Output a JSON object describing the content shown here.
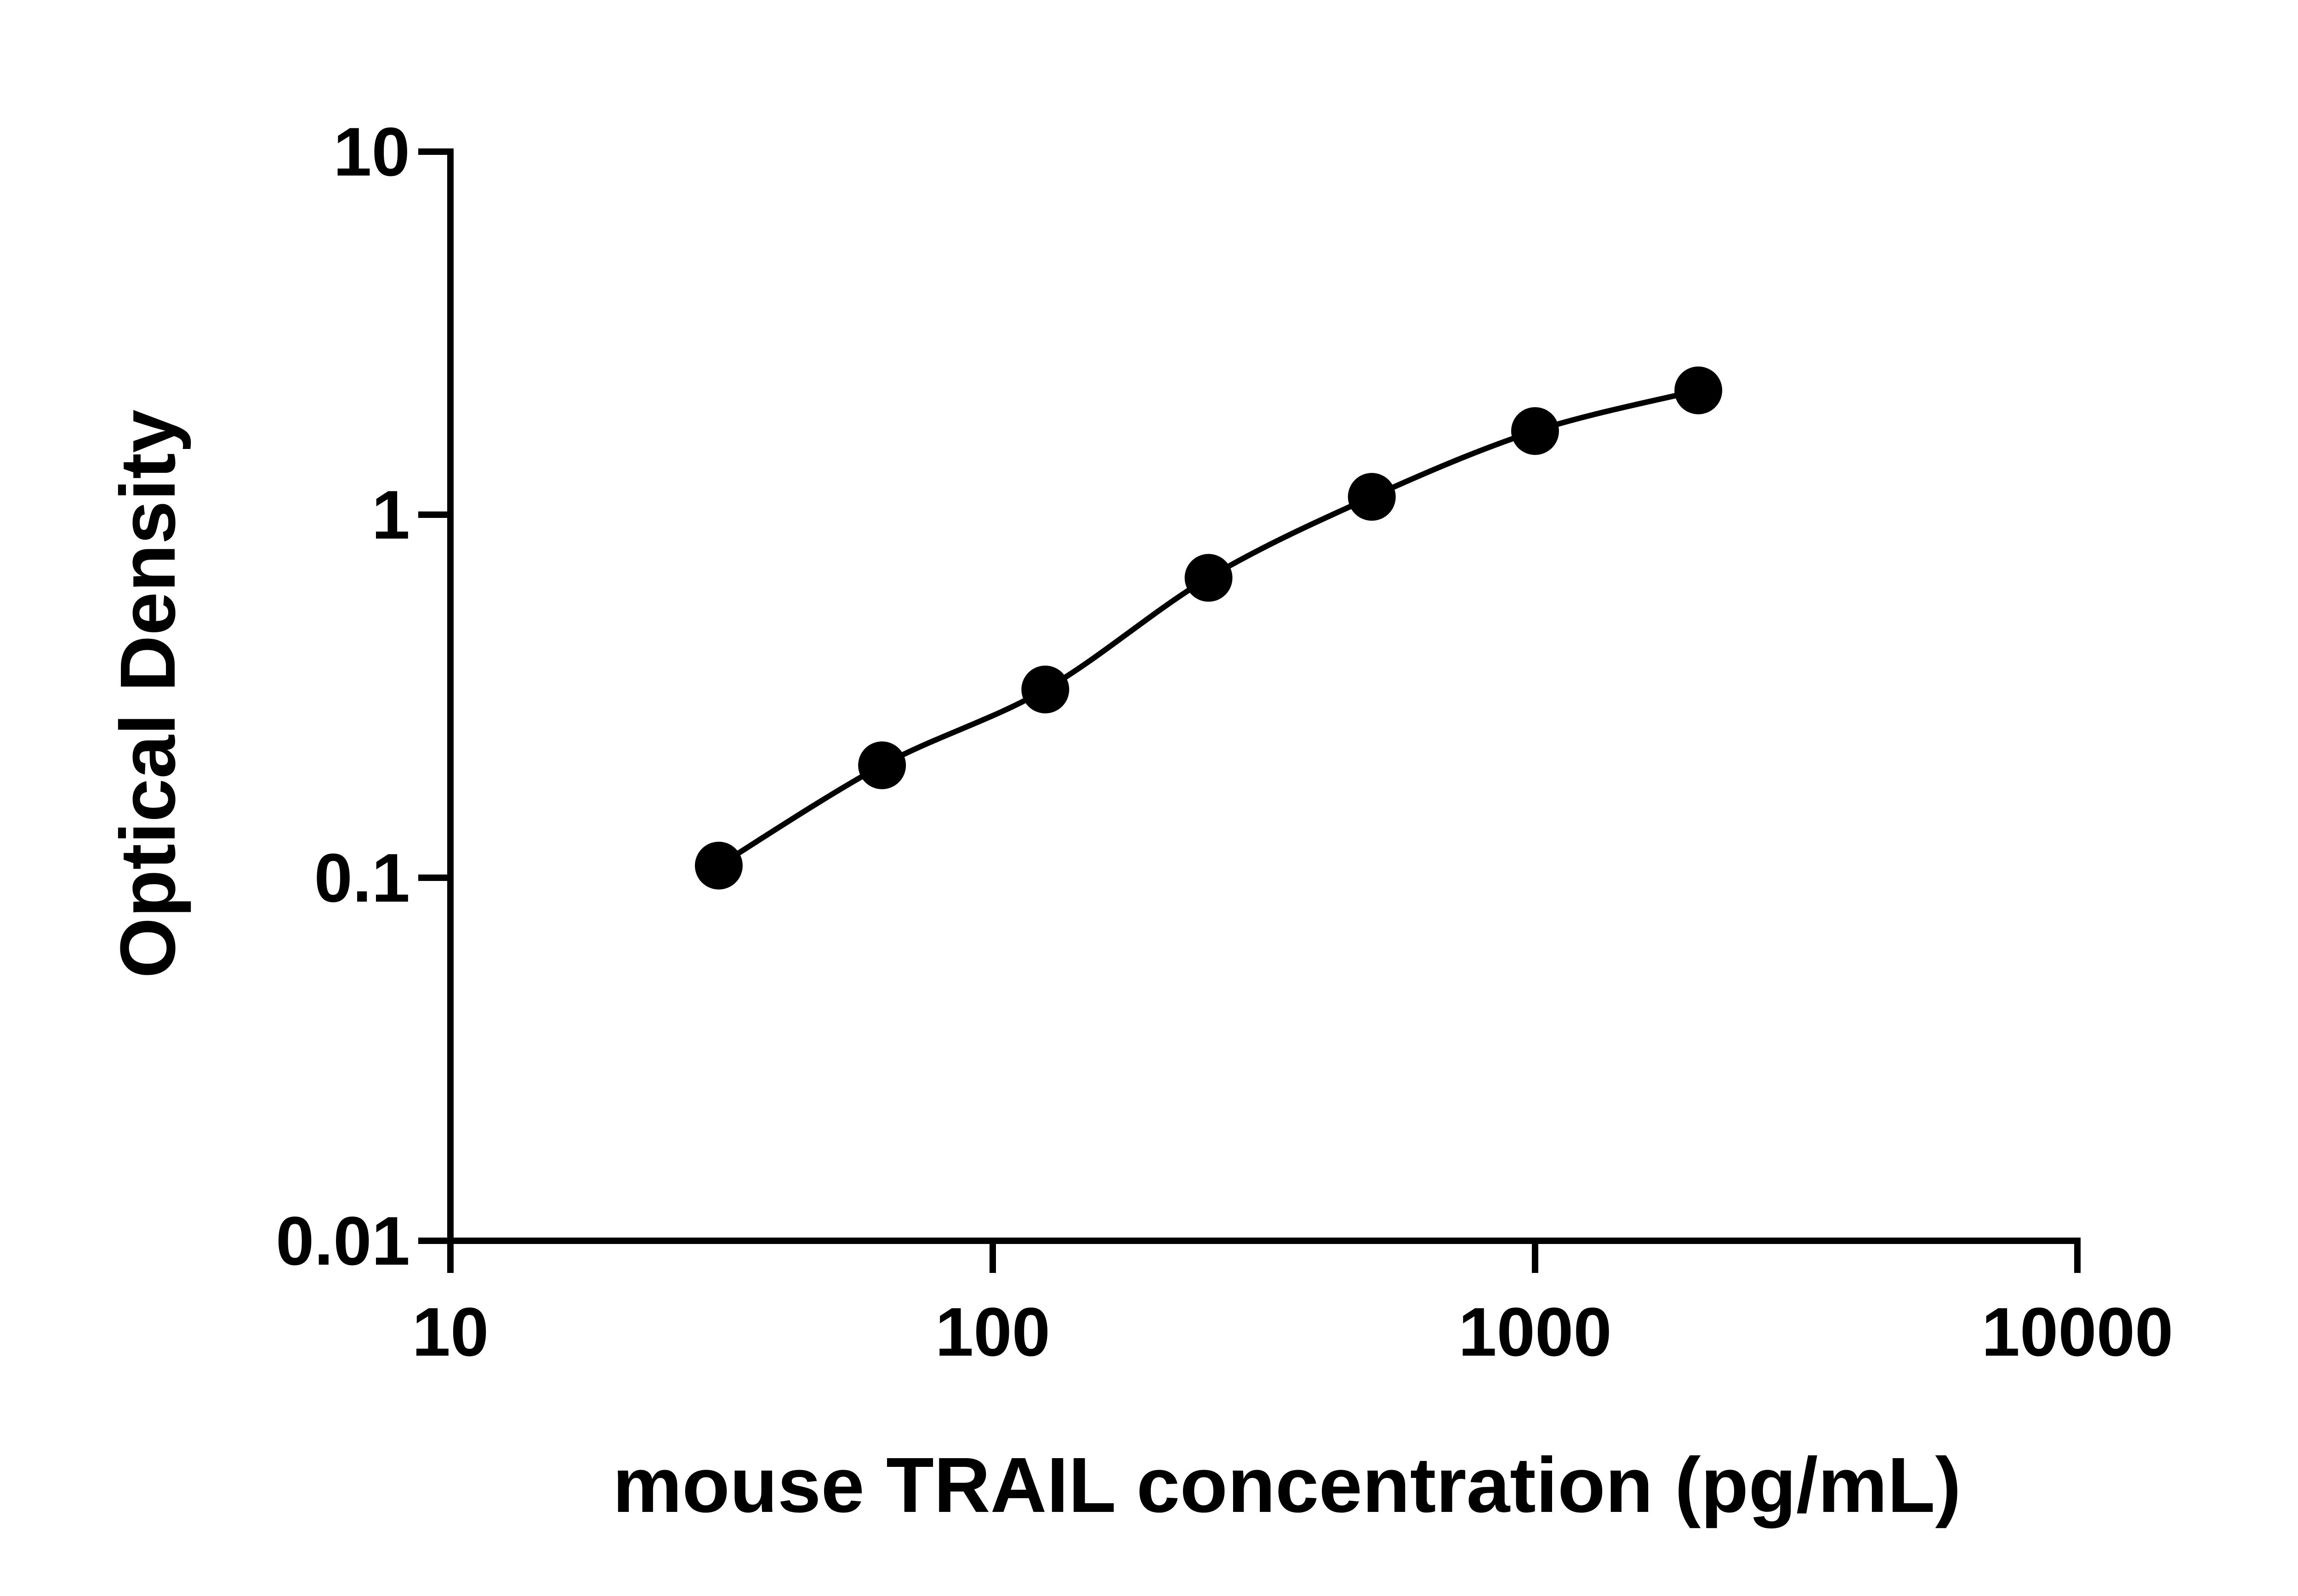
{
  "chart_data": {
    "type": "scatter",
    "xlabel": "mouse TRAIL concentration (pg/mL)",
    "ylabel": "Optical Density",
    "x_scale": "log",
    "y_scale": "log",
    "xlim": [
      10,
      10000
    ],
    "ylim": [
      0.01,
      10
    ],
    "x_ticks": [
      {
        "value": 10,
        "label": "10"
      },
      {
        "value": 100,
        "label": "100"
      },
      {
        "value": 1000,
        "label": "1000"
      },
      {
        "value": 10000,
        "label": "10000"
      }
    ],
    "y_ticks": [
      {
        "value": 0.01,
        "label": "0.01"
      },
      {
        "value": 0.1,
        "label": "0.1"
      },
      {
        "value": 1,
        "label": "1"
      },
      {
        "value": 10,
        "label": "10"
      }
    ],
    "grid": false,
    "legend": "none",
    "series": [
      {
        "marker": "filled-circle",
        "color": "#000000",
        "fit_line": true,
        "x": [
          31.25,
          62.5,
          125,
          250,
          500,
          1000,
          2000
        ],
        "y": [
          0.108,
          0.204,
          0.33,
          0.67,
          1.12,
          1.7,
          2.2
        ]
      }
    ]
  }
}
